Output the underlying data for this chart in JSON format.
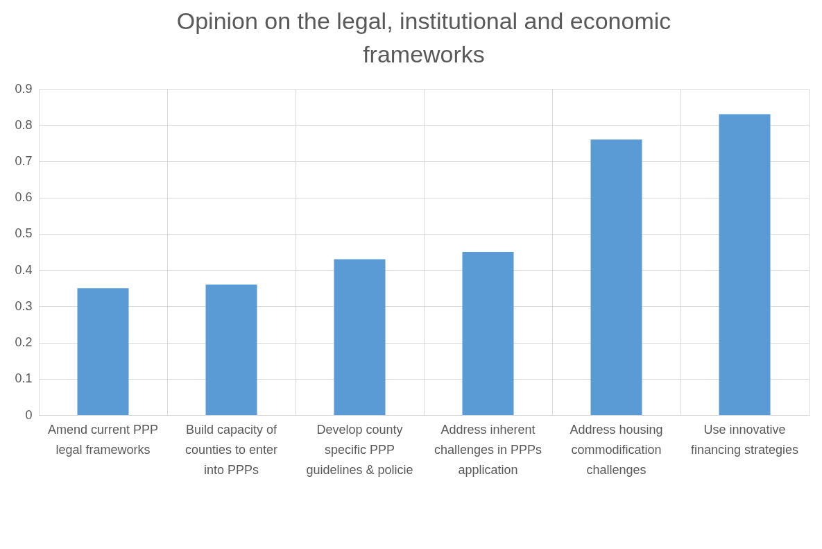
{
  "chart_data": {
    "type": "bar",
    "title": "Opinion on the legal, institutional and economic frameworks",
    "categories": [
      "Amend current PPP legal frameworks",
      "Build capacity of counties to enter into PPPs",
      "Develop county specific PPP guidelines & policie",
      "Address inherent challenges in PPPs application",
      "Address housing commodification challenges",
      "Use innovative financing strategies"
    ],
    "values": [
      0.35,
      0.36,
      0.43,
      0.45,
      0.76,
      0.83
    ],
    "color": "#5b9bd5",
    "ylim": [
      0,
      0.9
    ],
    "yticks": [
      0,
      0.1,
      0.2,
      0.3,
      0.4,
      0.5,
      0.6,
      0.7,
      0.8,
      0.9
    ],
    "grid": true
  }
}
